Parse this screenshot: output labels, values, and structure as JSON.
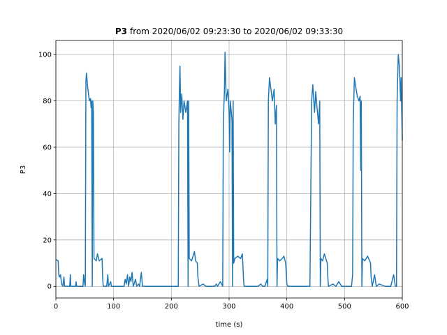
{
  "chart_data": {
    "type": "line",
    "title": {
      "bold": "P3",
      "text": "from 2020/06/02 09:23:30 to 2020/06/02 09:33:30"
    },
    "x_label": "time (s)",
    "y_label": "P3",
    "xlim": [
      0,
      600
    ],
    "ylim": [
      -5.05,
      106.05
    ],
    "xticks": [
      0,
      100,
      200,
      300,
      400,
      500,
      600
    ],
    "yticks": [
      0,
      20,
      40,
      60,
      80,
      100
    ],
    "grid": true,
    "series": [
      {
        "color": "#1f77b4",
        "x": [
          0,
          4,
          5,
          6,
          8,
          10,
          12,
          14,
          15,
          24,
          25,
          26,
          34,
          35,
          36,
          47,
          48,
          50,
          51,
          52,
          53,
          55,
          58,
          60,
          61,
          62,
          63,
          64,
          65,
          66,
          70,
          72,
          75,
          80,
          81,
          82,
          88,
          90,
          91,
          95,
          96,
          118,
          120,
          122,
          124,
          126,
          128,
          130,
          132,
          134,
          138,
          140,
          143,
          145,
          148,
          150,
          212,
          213,
          214,
          215,
          216,
          218,
          220,
          222,
          225,
          228,
          229,
          230,
          231,
          235,
          240,
          242,
          245,
          246,
          248,
          255,
          260,
          275,
          278,
          280,
          285,
          289,
          290,
          292,
          293,
          295,
          298,
          300,
          301,
          302,
          305,
          306,
          307,
          308,
          310,
          315,
          320,
          323,
          325,
          326,
          340,
          350,
          355,
          358,
          362,
          366,
          367,
          368,
          370,
          372,
          375,
          378,
          380,
          382,
          383,
          384,
          388,
          392,
          395,
          398,
          400,
          402,
          410,
          440,
          443,
          445,
          448,
          450,
          452,
          455,
          457,
          458,
          459,
          462,
          465,
          470,
          471,
          472,
          480,
          485,
          490,
          495,
          505,
          512,
          514,
          515,
          517,
          520,
          522,
          525,
          527,
          528,
          529,
          530,
          531,
          535,
          540,
          545,
          546,
          548,
          552,
          555,
          560,
          570,
          580,
          585,
          588,
          590,
          591,
          593,
          595,
          597,
          598,
          600
        ],
        "values": [
          11.5,
          11,
          5,
          4,
          5,
          1,
          0,
          4,
          0,
          0,
          5,
          0,
          0,
          2,
          0,
          0,
          5,
          1,
          0,
          88,
          92,
          86,
          80,
          81,
          77,
          80,
          0,
          80,
          75,
          12,
          11,
          14,
          11,
          12,
          4,
          0,
          0,
          5,
          0,
          2,
          0,
          0,
          3,
          1,
          5,
          0,
          4,
          2,
          6,
          0,
          3,
          0,
          1,
          0,
          6,
          0,
          0,
          70,
          85,
          95,
          75,
          83,
          72,
          80,
          75,
          80,
          0,
          80,
          12,
          11,
          15,
          11,
          10,
          4,
          0,
          1,
          0,
          0,
          1,
          0,
          2,
          0,
          70,
          85,
          101,
          80,
          85,
          75,
          58,
          80,
          72,
          0,
          80,
          10,
          12,
          13,
          12,
          14,
          3,
          0,
          0,
          0,
          1,
          0,
          0,
          3,
          0,
          80,
          90,
          86,
          80,
          85,
          70,
          78,
          0,
          12,
          11,
          12,
          13,
          10,
          1,
          0,
          0,
          0,
          80,
          87,
          75,
          84,
          78,
          70,
          80,
          0,
          12,
          11,
          14,
          10,
          4,
          0,
          1,
          0,
          2,
          0,
          0,
          0,
          5,
          70,
          90,
          85,
          82,
          80,
          82,
          50,
          80,
          0,
          12,
          11,
          13,
          10,
          4,
          0,
          5,
          0,
          1,
          0,
          0,
          5,
          0,
          0,
          80,
          100,
          95,
          80,
          90,
          63
        ]
      }
    ]
  }
}
